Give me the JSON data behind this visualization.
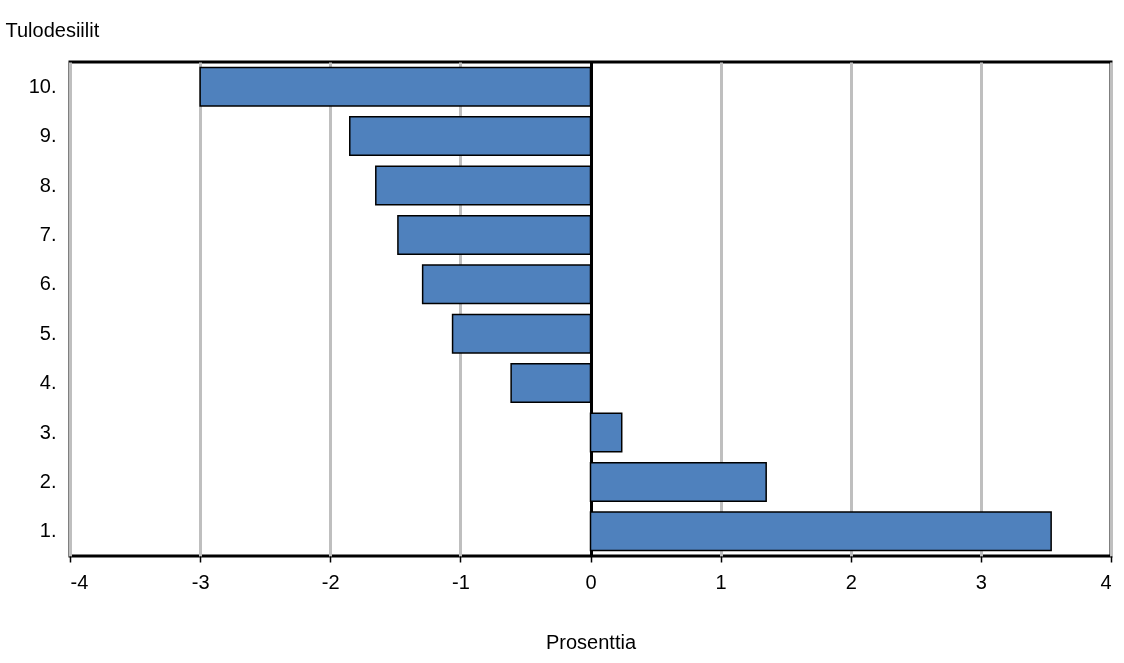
{
  "chart_data": {
    "type": "bar",
    "orientation": "horizontal",
    "xlabel": "Prosenttia",
    "ylabel": "Tulodesiilit",
    "categories": [
      "10.",
      "9.",
      "8.",
      "7.",
      "6.",
      "5.",
      "4.",
      "3.",
      "2.",
      "1."
    ],
    "values": [
      -3.0,
      -1.85,
      -1.65,
      -1.48,
      -1.29,
      -1.06,
      -0.61,
      0.24,
      1.35,
      3.54
    ],
    "color": "#4f81bd",
    "xlim": [
      -4,
      4
    ],
    "xticks": [
      -4,
      -3,
      -2,
      -1,
      0,
      1,
      2,
      3,
      4
    ],
    "grid": "x"
  }
}
